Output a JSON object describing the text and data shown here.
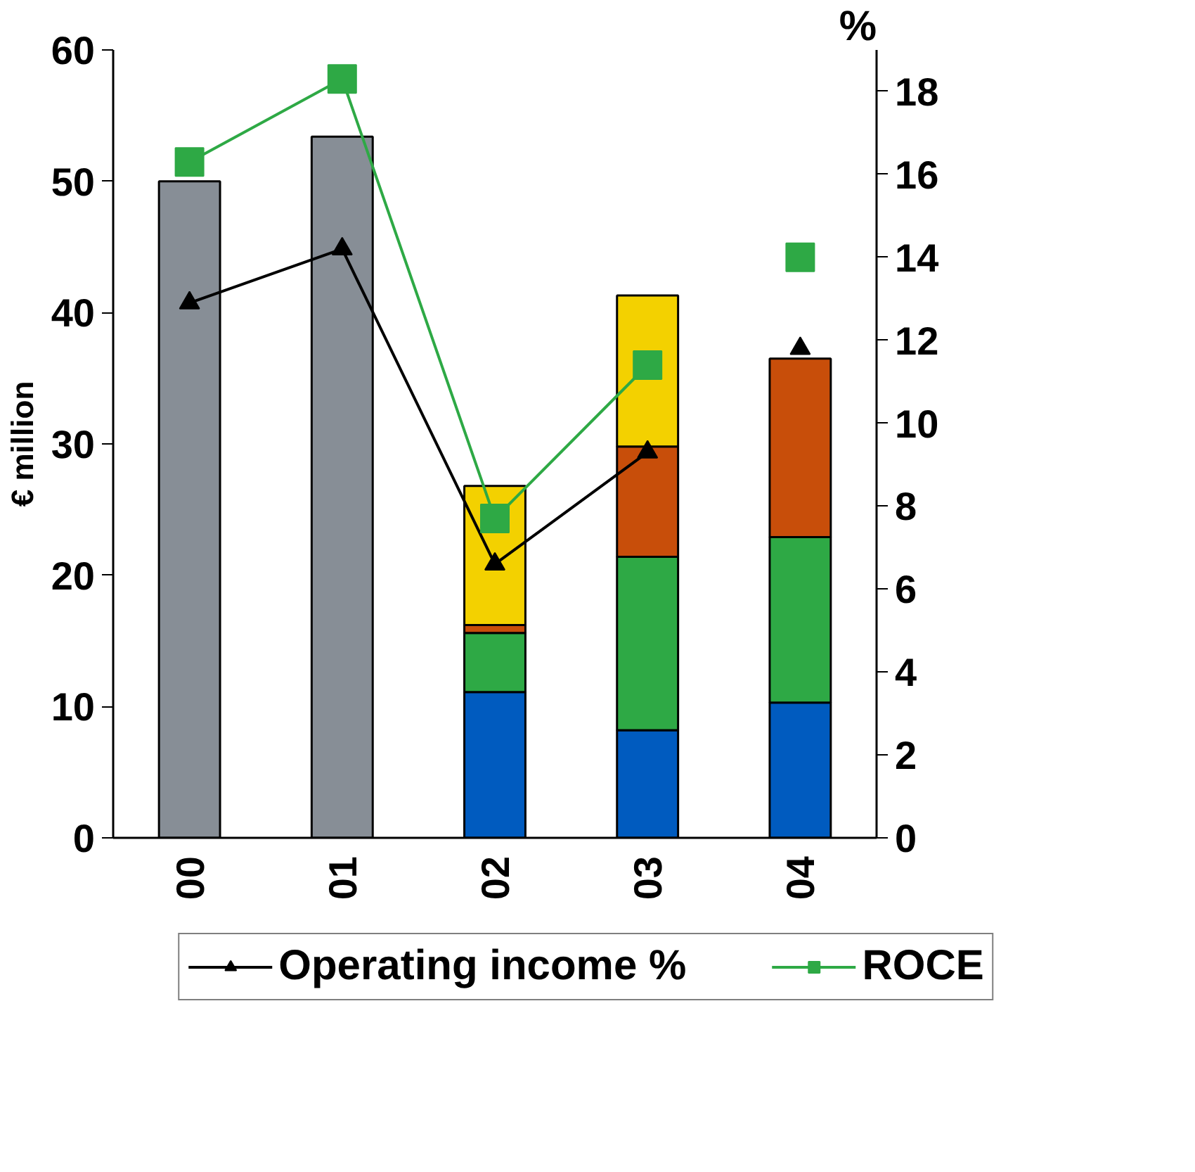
{
  "chart_data": {
    "type": "bar",
    "stacked": true,
    "ylabel": "€ million",
    "y2label": "%",
    "categories": [
      "00",
      "01",
      "02",
      "03",
      "04"
    ],
    "ylim": [
      0,
      60
    ],
    "yticks": [
      0,
      10,
      20,
      30,
      40,
      50,
      60
    ],
    "y2lim": [
      0,
      19
    ],
    "y2ticks": [
      0,
      2,
      4,
      6,
      8,
      10,
      12,
      14,
      16,
      18
    ],
    "grid": false,
    "legend": "bottom",
    "series": [
      {
        "color": "#878e96",
        "values": [
          50,
          53.4,
          null,
          null,
          null
        ]
      },
      {
        "color": "#005bbf",
        "values": [
          null,
          null,
          11.1,
          8.2,
          10.3
        ]
      },
      {
        "color": "#2ea945",
        "values": [
          null,
          null,
          4.5,
          13.2,
          12.6
        ]
      },
      {
        "color": "#c84e0a",
        "values": [
          null,
          null,
          0.6,
          8.4,
          13.6
        ]
      },
      {
        "color": "#f3d100",
        "values": [
          null,
          null,
          10.6,
          11.5,
          null
        ]
      },
      {
        "name": "Operating income %",
        "type": "line",
        "axis": "y2",
        "marker": "triangle",
        "color": "#000000",
        "values": [
          12.9,
          14.2,
          6.6,
          9.3,
          null
        ]
      },
      {
        "name": "ROCE",
        "type": "line",
        "axis": "y2",
        "marker": "square",
        "color": "#2ea945",
        "values": [
          16.3,
          18.3,
          7.7,
          11.4,
          null
        ]
      },
      {
        "type": "scatter",
        "axis": "y2",
        "marker": "triangle",
        "color": "#000000",
        "values": [
          null,
          null,
          null,
          null,
          11.8
        ]
      },
      {
        "type": "scatter",
        "axis": "y2",
        "marker": "square",
        "color": "#2ea945",
        "values": [
          null,
          null,
          null,
          null,
          14.0
        ]
      }
    ]
  }
}
